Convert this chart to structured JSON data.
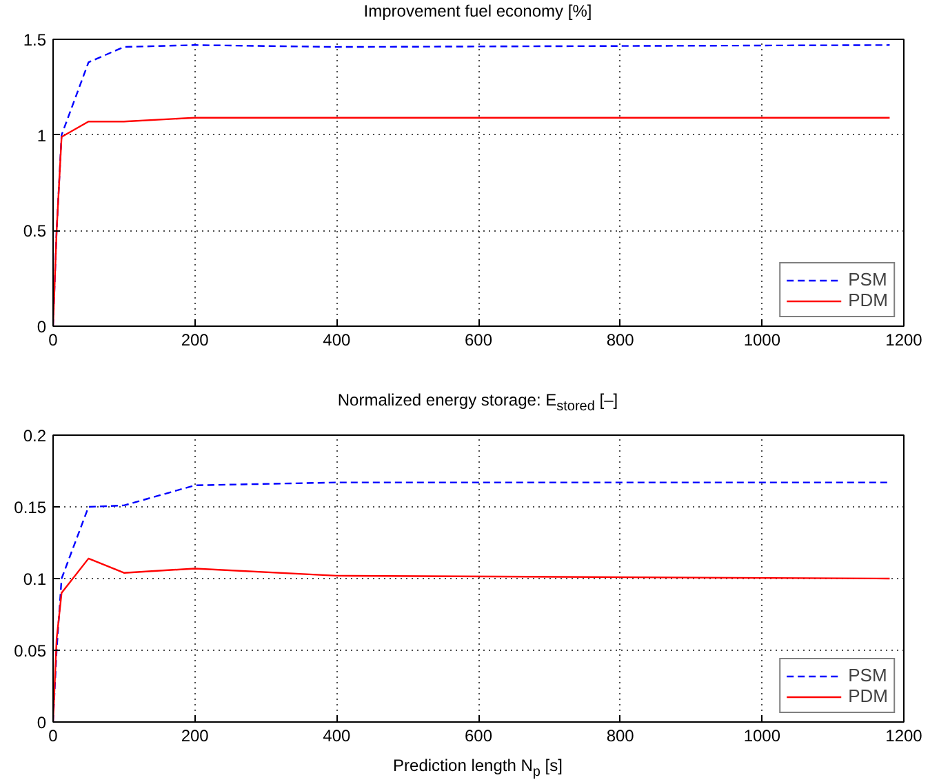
{
  "chart_data": [
    {
      "type": "line",
      "title": "Improvement fuel economy [%]",
      "xlim": [
        0,
        1200
      ],
      "xticks": [
        0,
        200,
        400,
        600,
        800,
        1000,
        1200
      ],
      "ylim": [
        0,
        1.5
      ],
      "yticks": [
        0,
        0.5,
        1,
        1.5
      ],
      "grid": true,
      "legend": "bottom right",
      "series": [
        {
          "name": "PSM",
          "color": "#0000ff",
          "line_style": "dashed",
          "x": [
            0,
            5,
            12,
            50,
            100,
            200,
            400,
            1180
          ],
          "values": [
            0,
            0.5,
            1.0,
            1.38,
            1.46,
            1.47,
            1.46,
            1.47
          ]
        },
        {
          "name": "PDM",
          "color": "#ff0000",
          "line_style": "solid",
          "x": [
            0,
            5,
            12,
            50,
            100,
            200,
            400,
            1180
          ],
          "values": [
            0,
            0.5,
            0.99,
            1.07,
            1.07,
            1.09,
            1.09,
            1.09
          ]
        }
      ]
    },
    {
      "type": "line",
      "title": "Normalized energy storage: E$_{stored}$ [–]",
      "xlabel": "Prediction length N$_{p}$ [s]",
      "xlim": [
        0,
        1200
      ],
      "xticks": [
        0,
        200,
        400,
        600,
        800,
        1000,
        1200
      ],
      "ylim": [
        0,
        0.2
      ],
      "yticks": [
        0,
        0.05,
        0.1,
        0.15,
        0.2
      ],
      "grid": true,
      "legend": "bottom right",
      "series": [
        {
          "name": "PSM",
          "color": "#0000ff",
          "line_style": "dashed",
          "x": [
            0,
            5,
            12,
            50,
            100,
            200,
            400,
            1180
          ],
          "values": [
            0,
            0.05,
            0.1,
            0.15,
            0.151,
            0.165,
            0.167,
            0.167
          ]
        },
        {
          "name": "PDM",
          "color": "#ff0000",
          "line_style": "solid",
          "x": [
            0,
            5,
            12,
            50,
            100,
            200,
            400,
            1180
          ],
          "values": [
            0,
            0.058,
            0.09,
            0.114,
            0.104,
            0.107,
            0.102,
            0.1
          ]
        }
      ]
    }
  ]
}
